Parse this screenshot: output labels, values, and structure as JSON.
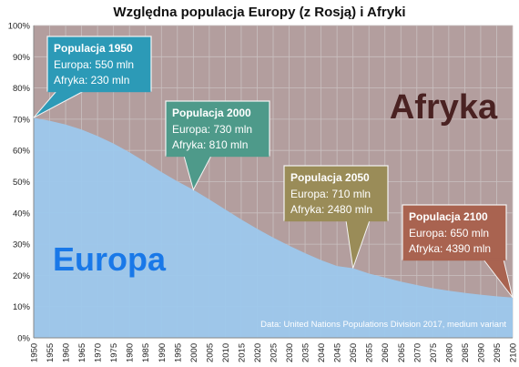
{
  "chart_data": {
    "type": "area",
    "title": "Względna populacja Europy (z Rosją) i Afryki",
    "x": [
      1950,
      1955,
      1960,
      1965,
      1970,
      1975,
      1980,
      1985,
      1990,
      1995,
      2000,
      2005,
      2010,
      2015,
      2020,
      2025,
      2030,
      2035,
      2040,
      2045,
      2050,
      2055,
      2060,
      2065,
      2070,
      2075,
      2080,
      2085,
      2090,
      2095,
      2100
    ],
    "series": [
      {
        "name": "Europa",
        "values": [
          70.5,
          69.5,
          68.3,
          66.7,
          64.6,
          62.2,
          59.4,
          56.3,
          53.1,
          50.1,
          47.4,
          44.3,
          41.1,
          37.9,
          34.9,
          32.1,
          29.5,
          27.1,
          24.9,
          23.0,
          22.3,
          20.6,
          19.3,
          18.0,
          16.9,
          15.9,
          15.1,
          14.4,
          13.8,
          13.3,
          12.9
        ]
      },
      {
        "name": "Afryka",
        "values": [
          29.5,
          30.5,
          31.7,
          33.3,
          35.4,
          37.8,
          40.6,
          43.7,
          46.9,
          49.9,
          52.6,
          55.7,
          58.9,
          62.1,
          65.1,
          67.9,
          70.5,
          72.9,
          75.1,
          77.0,
          77.7,
          79.4,
          80.7,
          82.0,
          83.1,
          84.1,
          84.9,
          85.6,
          86.2,
          86.7,
          87.1
        ]
      }
    ],
    "stacked": true,
    "ylim": [
      0,
      100
    ],
    "y_ticks": [
      "0%",
      "10%",
      "20%",
      "30%",
      "40%",
      "50%",
      "60%",
      "70%",
      "80%",
      "90%",
      "100%"
    ],
    "x_ticks": [
      "1950",
      "1955",
      "1960",
      "1965",
      "1970",
      "1975",
      "1980",
      "1985",
      "1990",
      "1995",
      "2000",
      "2005",
      "2010",
      "2015",
      "2020",
      "2025",
      "2030",
      "2035",
      "2040",
      "2045",
      "2050",
      "2055",
      "2060",
      "2065",
      "2070",
      "2075",
      "2080",
      "2085",
      "2090",
      "2095",
      "2100"
    ],
    "grid": true,
    "colors": {
      "europa": "#9dc8ec",
      "afryka": "#b39e9e",
      "grid": "#c9c0c0"
    },
    "area_labels": {
      "afryka": "Afryka",
      "europa": "Europa"
    },
    "area_label_colors": {
      "afryka": "#4a2222",
      "europa": "#1978e8"
    },
    "annotations": [
      {
        "x": 1950,
        "title": "Populacja 1950",
        "lines": [
          "Europa: 550 mln",
          "Afryka: 230 mln"
        ],
        "color": "#2c9ab7"
      },
      {
        "x": 2000,
        "title": "Populacja 2000",
        "lines": [
          "Europa: 730 mln",
          "Afryka: 810 mln"
        ],
        "color": "#4e9a8a"
      },
      {
        "x": 2050,
        "title": "Populacja 2050",
        "lines": [
          "Europa: 710 mln",
          "Afryka: 2480 mln"
        ],
        "color": "#9a8c58"
      },
      {
        "x": 2100,
        "title": "Populacja 2100",
        "lines": [
          "Europa: 650 mln",
          "Afryka: 4390 mln"
        ],
        "color": "#a96350"
      }
    ],
    "source": "Data: United Nations Populations Division 2017, medium variant"
  }
}
